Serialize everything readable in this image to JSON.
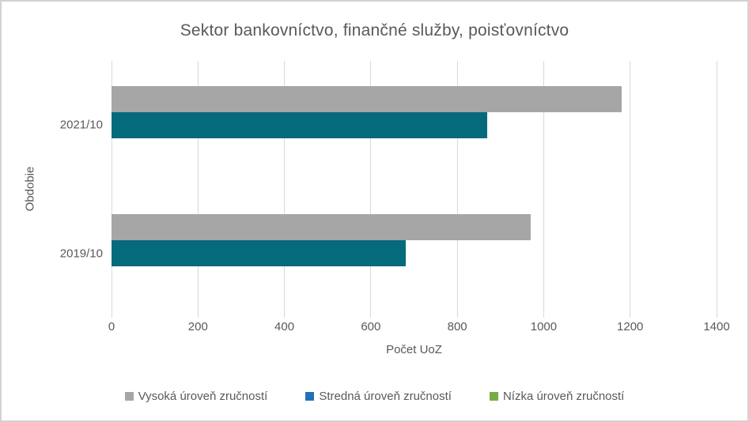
{
  "chart_data": {
    "type": "bar",
    "orientation": "horizontal",
    "title": "Sektor bankovníctvo, finančné služby, poisťovníctvo",
    "xlabel": "Počet UoZ",
    "ylabel": "Obdobie",
    "categories": [
      "2021/10",
      "2019/10"
    ],
    "series": [
      {
        "name": "Vysoká úroveň zručností",
        "bar_color": "#a6a6a6",
        "legend_color": "#a6a6a6",
        "values": [
          1180,
          970
        ]
      },
      {
        "name": "Stredná úroveň zručností",
        "bar_color": "#066a7d",
        "legend_color": "#2171b9",
        "values": [
          870,
          680
        ]
      },
      {
        "name": "Nízka úroveň zručností",
        "bar_color": "#77ab43",
        "legend_color": "#77ab43",
        "values": [
          0,
          0
        ]
      }
    ],
    "xlim": [
      0,
      1400
    ],
    "xticks": [
      0,
      200,
      400,
      600,
      800,
      1000,
      1200,
      1400
    ],
    "grid": true,
    "gridline_color": "#d9d9d9",
    "text_color": "#595959",
    "border_color": "#d2d2d2",
    "legend_position": "bottom",
    "background": "#ffffff"
  }
}
